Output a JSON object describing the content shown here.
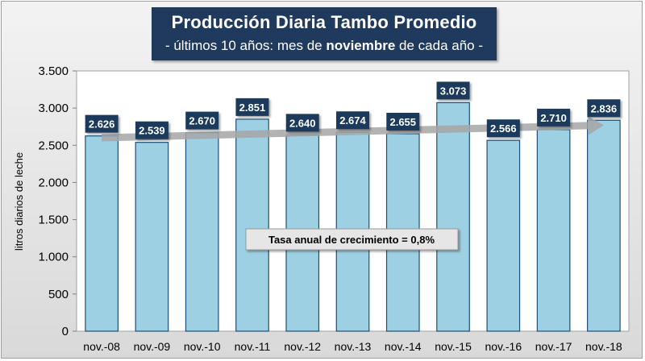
{
  "chart_data": {
    "type": "bar",
    "title": "Producción Diaria Tambo Promedio",
    "subtitle_prefix": "- últimos 10 años: mes de ",
    "subtitle_bold": "noviembre",
    "subtitle_suffix": " de cada año -",
    "xlabel": "",
    "ylabel": "litros diarios de leche",
    "ylim": [
      0,
      3500
    ],
    "ytick_values": [
      0,
      500,
      1000,
      1500,
      2000,
      2500,
      3000,
      3500
    ],
    "ytick_labels": [
      "0",
      "500",
      "1.000",
      "1.500",
      "2.000",
      "2.500",
      "3.000",
      "3.500"
    ],
    "categories": [
      "nov.-08",
      "nov.-09",
      "nov.-10",
      "nov.-11",
      "nov.-12",
      "nov.-13",
      "nov.-14",
      "nov.-15",
      "nov.-16",
      "nov.-17",
      "nov.-18"
    ],
    "values": [
      2626,
      2539,
      2670,
      2851,
      2640,
      2674,
      2655,
      3073,
      2566,
      2710,
      2836
    ],
    "value_labels": [
      "2.626",
      "2.539",
      "2.670",
      "2.851",
      "2.640",
      "2.674",
      "2.655",
      "3.073",
      "2.566",
      "2.710",
      "2.836"
    ],
    "trend": {
      "start": 2600,
      "end": 2770
    },
    "annotation": "Tasa anual de crecimiento = 0,8%",
    "grid": false,
    "legend": "none",
    "colors": {
      "bar_fill": "#9dd0e2",
      "bar_edge": "#1e4f78",
      "label_box": "#1f3a5c",
      "title_box": "#1f3a5c",
      "trend_arrow": "#a6a6a6",
      "annotation_box": "#e6e6e6"
    }
  }
}
